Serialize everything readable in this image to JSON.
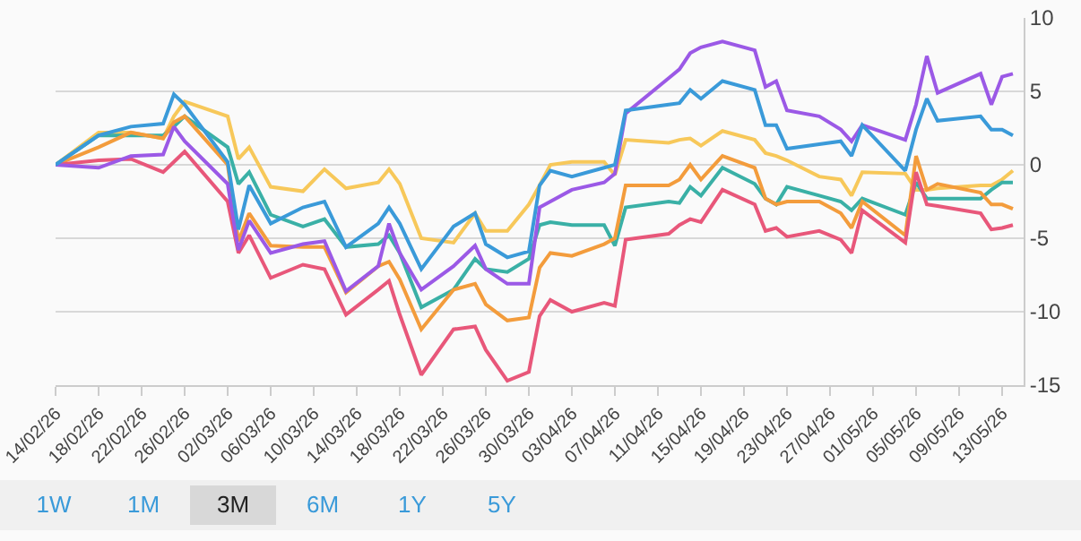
{
  "chart_data": {
    "type": "line",
    "x": [
      "--02-14",
      "--02-18",
      "--02-21",
      "--02-24",
      "--02-25",
      "--02-26",
      "--03-02",
      "--03-03",
      "--03-04",
      "--03-06",
      "--03-09",
      "--03-11",
      "--03-13",
      "--03-16",
      "--03-17",
      "--03-18",
      "--03-20",
      "--03-23",
      "--03-25",
      "--03-26",
      "--03-28",
      "--03-30",
      "--03-31",
      "--04-01",
      "--04-03",
      "--04-06",
      "--04-07",
      "--04-08",
      "--04-12",
      "--04-13",
      "--04-14",
      "--04-15",
      "--04-17",
      "--04-20",
      "--04-21",
      "--04-22",
      "--04-23",
      "--04-26",
      "--04-28",
      "--04-29",
      "--04-30",
      "--05-04",
      "--05-05",
      "--05-06",
      "--05-07",
      "--05-11",
      "--05-12",
      "--05-13",
      "--05-14"
    ],
    "series": [
      {
        "color": "#f7c85a",
        "values": [
          0,
          2.2,
          2.2,
          1.8,
          3.3,
          4.3,
          3.3,
          0.4,
          1.2,
          -1.5,
          -1.8,
          -0.3,
          -1.6,
          -1.2,
          -0.3,
          -1.3,
          -5.0,
          -5.3,
          -3.3,
          -4.5,
          -4.5,
          -2.7,
          -1.4,
          0,
          0.2,
          0.2,
          -0.7,
          1.7,
          1.5,
          1.7,
          1.8,
          1.3,
          2.3,
          1.7,
          0.8,
          0.6,
          0.3,
          -0.8,
          -1.0,
          -2.1,
          -0.5,
          -0.6,
          -1.7,
          -1.7,
          -1.6,
          -1.4,
          -1.4,
          -1.0,
          -0.4
        ]
      },
      {
        "color": "#3ab0a6",
        "values": [
          0,
          2.0,
          2.0,
          2.0,
          2.6,
          3.3,
          1.2,
          -1.3,
          -0.5,
          -3.4,
          -4.2,
          -3.7,
          -5.6,
          -5.4,
          -4.8,
          -6.0,
          -9.7,
          -8.5,
          -6.4,
          -7.1,
          -7.3,
          -6.4,
          -4.1,
          -3.9,
          -4.1,
          -4.1,
          -5.5,
          -2.9,
          -2.5,
          -2.6,
          -1.5,
          -2.1,
          -0.2,
          -1.3,
          -2.3,
          -2.7,
          -1.5,
          -2.1,
          -2.5,
          -3.1,
          -2.3,
          -3.4,
          -1.2,
          -2.3,
          -2.3,
          -2.3,
          -1.7,
          -1.2,
          -1.2
        ]
      },
      {
        "color": "#f39c3c",
        "values": [
          0,
          1.2,
          2.2,
          1.8,
          2.9,
          3.3,
          0,
          -5.2,
          -3.3,
          -5.5,
          -5.6,
          -5.6,
          -8.7,
          -6.9,
          -6.6,
          -7.8,
          -11.2,
          -8.5,
          -8.1,
          -9.5,
          -10.6,
          -10.4,
          -7.0,
          -6.0,
          -6.2,
          -5.4,
          -5.0,
          -1.4,
          -1.4,
          -1.0,
          0,
          -1.0,
          0.6,
          -0.2,
          -2.3,
          -2.7,
          -2.5,
          -2.5,
          -3.3,
          -4.3,
          -2.5,
          -4.8,
          0.6,
          -1.7,
          -1.3,
          -1.9,
          -2.7,
          -2.7,
          -3.0
        ]
      },
      {
        "color": "#e8577a",
        "values": [
          0,
          0.3,
          0.4,
          -0.5,
          0.2,
          0.9,
          -2.5,
          -6.0,
          -4.8,
          -7.7,
          -6.8,
          -7.1,
          -10.2,
          -8.5,
          -7.9,
          -10.2,
          -14.3,
          -11.2,
          -11.0,
          -12.6,
          -14.7,
          -14.1,
          -10.3,
          -9.2,
          -10.0,
          -9.4,
          -9.6,
          -5.1,
          -4.7,
          -4.1,
          -3.7,
          -3.9,
          -1.7,
          -2.7,
          -4.5,
          -4.3,
          -4.9,
          -4.5,
          -5.1,
          -6.0,
          -3.1,
          -5.3,
          -0.5,
          -2.7,
          -2.8,
          -3.3,
          -4.4,
          -4.3,
          -4.1
        ]
      },
      {
        "color": "#9b59e6",
        "values": [
          0,
          -0.2,
          0.6,
          0.7,
          2.6,
          1.6,
          -1.3,
          -5.8,
          -3.8,
          -6.0,
          -5.4,
          -5.2,
          -8.6,
          -6.9,
          -4.0,
          -6.0,
          -8.5,
          -6.9,
          -5.5,
          -7.1,
          -8.1,
          -8.1,
          -2.9,
          -2.5,
          -1.7,
          -1.2,
          -0.6,
          3.5,
          5.9,
          6.5,
          7.6,
          8.0,
          8.4,
          7.8,
          5.3,
          5.7,
          3.7,
          3.3,
          2.4,
          1.6,
          2.7,
          1.7,
          4.1,
          7.4,
          4.9,
          6.2,
          4.1,
          6.0,
          6.2
        ]
      },
      {
        "color": "#3a9ad9",
        "values": [
          0,
          2.0,
          2.6,
          2.8,
          4.8,
          4.1,
          0.2,
          -4.4,
          -1.4,
          -4.0,
          -2.9,
          -2.5,
          -5.6,
          -4.0,
          -2.9,
          -4.0,
          -7.1,
          -4.2,
          -3.3,
          -5.4,
          -6.3,
          -5.9,
          -1.4,
          -0.4,
          -0.8,
          -0.2,
          0,
          3.7,
          4.1,
          4.2,
          5.1,
          4.5,
          5.7,
          5.1,
          2.7,
          2.7,
          1.1,
          1.4,
          1.6,
          0.6,
          2.7,
          -0.4,
          2.4,
          4.5,
          3.0,
          3.3,
          2.4,
          2.4,
          2.0
        ]
      }
    ],
    "xlim": [
      "--02-14",
      "--05-15"
    ],
    "xticks": [
      {
        "value": "--02-14",
        "label": "14/02/26"
      },
      {
        "value": "--02-18",
        "label": "18/02/26"
      },
      {
        "value": "--02-22",
        "label": "22/02/26"
      },
      {
        "value": "--02-26",
        "label": "26/02/26"
      },
      {
        "value": "--03-02",
        "label": "02/03/26"
      },
      {
        "value": "--03-06",
        "label": "06/03/26"
      },
      {
        "value": "--03-10",
        "label": "10/03/26"
      },
      {
        "value": "--03-14",
        "label": "14/03/26"
      },
      {
        "value": "--03-18",
        "label": "18/03/26"
      },
      {
        "value": "--03-22",
        "label": "22/03/26"
      },
      {
        "value": "--03-26",
        "label": "26/03/26"
      },
      {
        "value": "--03-30",
        "label": "30/03/26"
      },
      {
        "value": "--04-03",
        "label": "03/04/26"
      },
      {
        "value": "--04-07",
        "label": "07/04/26"
      },
      {
        "value": "--04-11",
        "label": "11/04/26"
      },
      {
        "value": "--04-15",
        "label": "15/04/26"
      },
      {
        "value": "--04-19",
        "label": "19/04/26"
      },
      {
        "value": "--04-23",
        "label": "23/04/26"
      },
      {
        "value": "--04-27",
        "label": "27/04/26"
      },
      {
        "value": "--05-01",
        "label": "01/05/26"
      },
      {
        "value": "--05-05",
        "label": "05/05/26"
      },
      {
        "value": "--05-09",
        "label": "09/05/26"
      },
      {
        "value": "--05-13",
        "label": "13/05/26"
      }
    ],
    "ylim": [
      -15,
      10
    ],
    "yticks": [
      -15,
      -10,
      -5,
      0,
      5,
      10
    ],
    "grid": "y",
    "marker": "none",
    "line_style": "solid",
    "annotations": [
      "1W",
      "1M",
      "3M",
      "6M",
      "1Y",
      "5Y"
    ]
  }
}
